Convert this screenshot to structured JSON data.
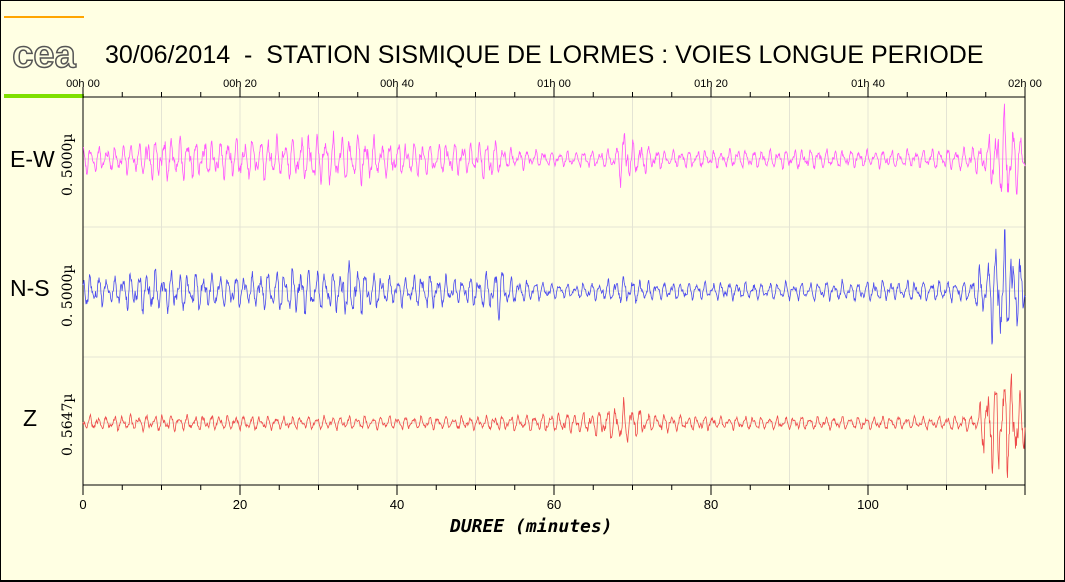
{
  "title": "30/06/2014  -  STATION SISMIQUE DE LORMES : VOIES LONGUE PERIODE",
  "logo": "cea",
  "colors": {
    "background": "#ffffe3",
    "grid": "#e4e4d4",
    "e_w": "#ff55ff",
    "n_s": "#4a4aee",
    "z": "#ee4a4a",
    "orange_bar": "#ffa500",
    "green_bar": "#7fe000"
  },
  "chart_data": {
    "type": "line",
    "xlabel": "DUREE (minutes)",
    "xlim": [
      0,
      120
    ],
    "x_ticks": [
      0,
      20,
      40,
      60,
      80,
      100
    ],
    "x_tick_labels": [
      "0",
      "20",
      "40",
      "60",
      "80",
      "100"
    ],
    "top_ticks": [
      0,
      20,
      40,
      60,
      80,
      100,
      120
    ],
    "top_tick_labels": [
      "00h 00",
      "00h 20",
      "00h 40",
      "01h 00",
      "01h 20",
      "01h 40",
      "02h 00"
    ],
    "grid": true,
    "series": [
      {
        "name": "E-W",
        "scale": "0. 5000µ",
        "color": "#ff55ff",
        "ylim": [
          -1,
          1
        ],
        "envelope": [
          [
            0,
            0.28
          ],
          [
            3,
            0.2
          ],
          [
            6,
            0.28
          ],
          [
            10,
            0.42
          ],
          [
            14,
            0.36
          ],
          [
            18,
            0.36
          ],
          [
            22,
            0.38
          ],
          [
            27,
            0.4
          ],
          [
            30,
            0.45
          ],
          [
            33,
            0.42
          ],
          [
            35,
            0.48
          ],
          [
            38,
            0.32
          ],
          [
            42,
            0.32
          ],
          [
            46,
            0.3
          ],
          [
            50,
            0.28
          ],
          [
            52,
            0.42
          ],
          [
            54,
            0.2
          ],
          [
            60,
            0.13
          ],
          [
            66,
            0.16
          ],
          [
            68,
            0.2
          ],
          [
            69,
            0.7
          ],
          [
            70,
            0.35
          ],
          [
            74,
            0.15
          ],
          [
            80,
            0.16
          ],
          [
            90,
            0.18
          ],
          [
            100,
            0.16
          ],
          [
            110,
            0.18
          ],
          [
            114,
            0.25
          ],
          [
            116,
            0.5
          ],
          [
            117,
            0.9
          ],
          [
            118,
            0.8
          ],
          [
            119,
            0.55
          ],
          [
            120,
            0.3
          ]
        ]
      },
      {
        "name": "N-S",
        "scale": "0. 5000µ",
        "color": "#4a4aee",
        "ylim": [
          -1,
          1
        ],
        "envelope": [
          [
            0,
            0.3
          ],
          [
            4,
            0.25
          ],
          [
            8,
            0.42
          ],
          [
            12,
            0.38
          ],
          [
            16,
            0.34
          ],
          [
            20,
            0.28
          ],
          [
            24,
            0.38
          ],
          [
            28,
            0.44
          ],
          [
            32,
            0.36
          ],
          [
            34,
            0.52
          ],
          [
            36,
            0.36
          ],
          [
            40,
            0.24
          ],
          [
            44,
            0.32
          ],
          [
            48,
            0.22
          ],
          [
            52,
            0.38
          ],
          [
            53,
            0.52
          ],
          [
            55,
            0.22
          ],
          [
            60,
            0.13
          ],
          [
            66,
            0.16
          ],
          [
            69,
            0.26
          ],
          [
            72,
            0.16
          ],
          [
            80,
            0.16
          ],
          [
            90,
            0.16
          ],
          [
            100,
            0.18
          ],
          [
            108,
            0.18
          ],
          [
            113,
            0.2
          ],
          [
            115,
            0.55
          ],
          [
            116,
            0.85
          ],
          [
            117,
            1.0
          ],
          [
            118,
            0.9
          ],
          [
            119,
            0.65
          ],
          [
            120,
            0.4
          ]
        ]
      },
      {
        "name": "Z",
        "scale": "0. 5647µ",
        "color": "#ee4a4a",
        "ylim": [
          -1,
          1
        ],
        "envelope": [
          [
            0,
            0.12
          ],
          [
            10,
            0.15
          ],
          [
            20,
            0.13
          ],
          [
            30,
            0.12
          ],
          [
            40,
            0.12
          ],
          [
            50,
            0.12
          ],
          [
            58,
            0.16
          ],
          [
            64,
            0.2
          ],
          [
            68,
            0.3
          ],
          [
            69,
            0.42
          ],
          [
            70,
            0.32
          ],
          [
            72,
            0.18
          ],
          [
            80,
            0.12
          ],
          [
            90,
            0.12
          ],
          [
            100,
            0.12
          ],
          [
            110,
            0.12
          ],
          [
            114,
            0.16
          ],
          [
            115,
            0.8
          ],
          [
            116,
            0.9
          ],
          [
            117,
            1.0
          ],
          [
            118,
            0.9
          ],
          [
            119,
            0.7
          ],
          [
            120,
            0.45
          ]
        ]
      }
    ]
  }
}
